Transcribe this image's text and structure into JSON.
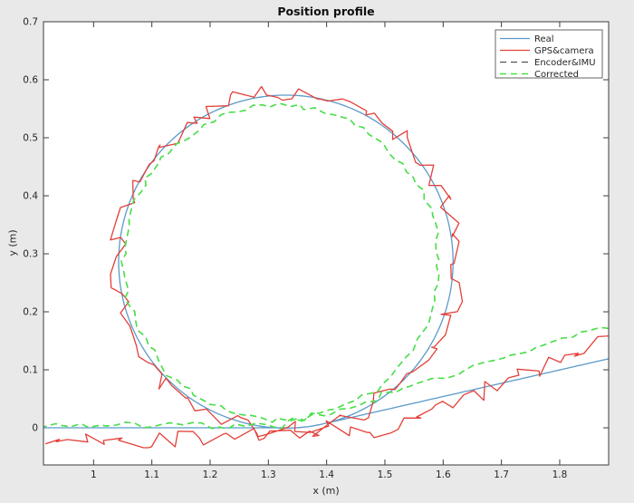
{
  "figure": {
    "background": "#e9e9e9",
    "plot_background": "#ffffff",
    "axis_color": "#3c3c3c",
    "text_color": "#262626"
  },
  "chart_data": {
    "type": "line",
    "title": "Position profile",
    "xlabel": "x (m)",
    "ylabel": "y (m)",
    "xlim": [
      0.914,
      1.884
    ],
    "ylim": [
      -0.064,
      0.7
    ],
    "grid": false,
    "box": true,
    "xticks": {
      "values": [
        1,
        1.1,
        1.2,
        1.3,
        1.4,
        1.5,
        1.6,
        1.7,
        1.8
      ],
      "labels": [
        "1",
        "1.1",
        "1.2",
        "1.3",
        "1.4",
        "1.5",
        "1.6",
        "1.7",
        "1.8"
      ]
    },
    "yticks": {
      "values": [
        0,
        0.1,
        0.2,
        0.3,
        0.4,
        0.5,
        0.6,
        0.7
      ],
      "labels": [
        "0",
        "0.1",
        "0.2",
        "0.3",
        "0.4",
        "0.5",
        "0.6",
        "0.7"
      ]
    },
    "legend": {
      "position": "northeast",
      "entries": [
        "Real",
        "GPS&camera",
        "Encoder&IMU",
        "Corrected"
      ]
    },
    "trajectory_description": "Straight approach along y=0, one full counter-clockwise loop (circle of radius ~0.287 m centred at ~(1.33, 0.287)), then straight exit rising to the right edge.",
    "series": [
      {
        "name": "Real",
        "color": "#5b9ac8",
        "dash": null,
        "width": 1.3,
        "noise": 0,
        "seed": 1,
        "sample_step": 1,
        "path": {
          "approach": {
            "from": [
              0.914,
              0.0
            ],
            "to": [
              1.33,
              0.0
            ]
          },
          "loop": {
            "center": [
              1.33,
              0.2865
            ],
            "radius": 0.287,
            "start_deg": -90,
            "sweep_deg": 373,
            "direction": "ccw"
          },
          "exit": [
            {
              "to": [
                1.884,
                0.119
              ]
            }
          ]
        }
      },
      {
        "name": "GPS&camera",
        "color": "#e2403a",
        "dash": null,
        "width": 1.3,
        "noise": 0.016,
        "seed": 42,
        "sample_step": 2,
        "path": {
          "approach": {
            "from": [
              0.914,
              -0.026
            ],
            "to": [
              1.34,
              -0.01
            ]
          },
          "loop": {
            "center": [
              1.332,
              0.2875
            ],
            "radius": 0.292,
            "start_deg": -90,
            "sweep_deg": 372,
            "direction": "ccw"
          },
          "exit": [
            {
              "to": [
                1.48,
                -0.02
              ]
            },
            {
              "to": [
                1.884,
                0.153
              ]
            }
          ]
        }
      },
      {
        "name": "Encoder&IMU",
        "color": "#3b3b3b",
        "dash": "7 5",
        "width": 1.1,
        "noise": 0.0055,
        "seed": 7,
        "sample_step": 2,
        "path": {
          "approach": {
            "from": [
              0.914,
              0.005
            ],
            "to": [
              1.335,
              0.003
            ]
          },
          "loop": {
            "center": [
              1.322,
              0.2845
            ],
            "radius": 0.2705,
            "start_deg": -90,
            "sweep_deg": 380,
            "direction": "ccw"
          },
          "exit": [
            {
              "to": [
                1.884,
                0.176
              ]
            }
          ]
        }
      },
      {
        "name": "Corrected",
        "color": "#46e146",
        "dash": "7 5",
        "width": 1.6,
        "noise": 0.0055,
        "seed": 7,
        "sample_step": 2,
        "path": {
          "approach": {
            "from": [
              0.914,
              0.005
            ],
            "to": [
              1.335,
              0.003
            ]
          },
          "loop": {
            "center": [
              1.322,
              0.2845
            ],
            "radius": 0.2705,
            "start_deg": -90,
            "sweep_deg": 380,
            "direction": "ccw"
          },
          "exit": [
            {
              "to": [
                1.884,
                0.176
              ]
            }
          ]
        }
      }
    ]
  }
}
